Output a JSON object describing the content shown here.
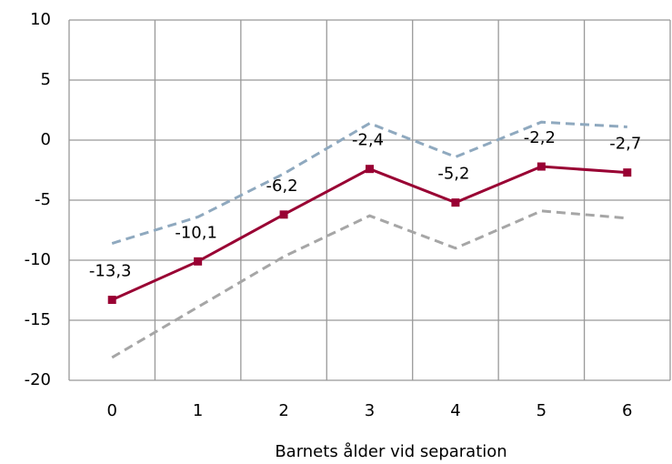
{
  "chart_data": {
    "type": "line",
    "categories": [
      "0",
      "1",
      "2",
      "3",
      "4",
      "5",
      "6"
    ],
    "x_label": "Barnets ålder vid separation",
    "series": [
      {
        "color": "#8fa9bf",
        "dashed": true,
        "values": [
          -8.6,
          -6.4,
          -2.8,
          1.4,
          -1.4,
          1.5,
          1.1
        ]
      },
      {
        "color": "#a6a6a6",
        "dashed": true,
        "values": [
          -18.1,
          -13.9,
          -9.7,
          -6.3,
          -9.0,
          -5.9,
          -6.5
        ]
      },
      {
        "color": "#990033",
        "markers": true,
        "values": [
          -13.3,
          -10.1,
          -6.2,
          -2.4,
          -5.2,
          -2.2,
          -2.7
        ],
        "value_labels": [
          "-13,3",
          "-10,1",
          "-6,2",
          "-2,4",
          "-5,2",
          "-2,2",
          "-2,7"
        ]
      }
    ],
    "ylim": [
      -20,
      10
    ],
    "yticks": [
      -20,
      -15,
      -10,
      -5,
      0,
      5,
      10
    ],
    "grid": true
  }
}
